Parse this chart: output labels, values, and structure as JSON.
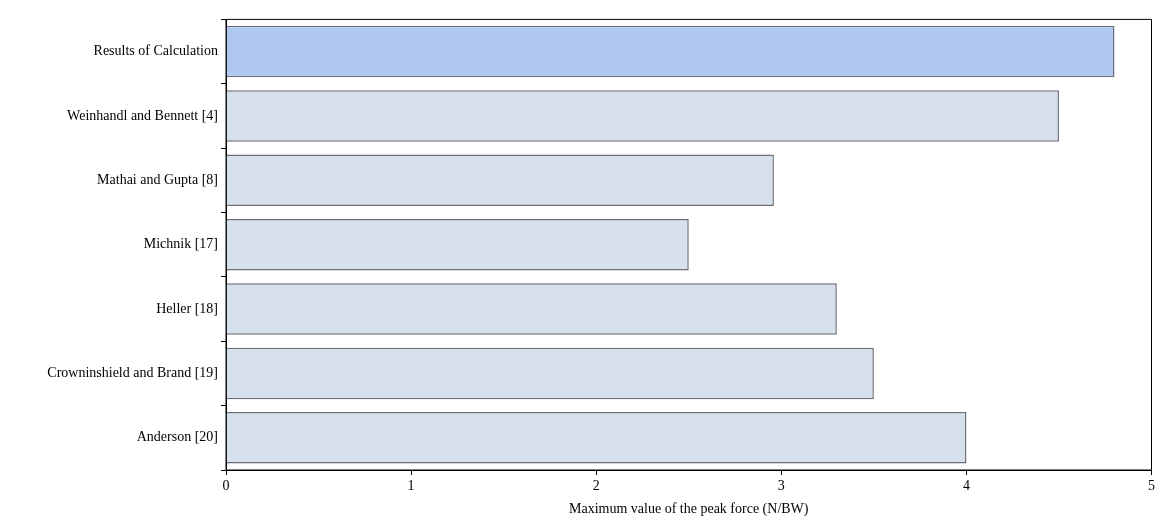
{
  "chart_data": {
    "type": "bar",
    "orientation": "horizontal",
    "xlabel": "Maximum value of the peak force (N/BW)",
    "categories": [
      "Results of Calculation",
      "Weinhandl and Bennett [4]",
      "Mathai and Gupta [8]",
      "Michnik [17]",
      "Heller [18]",
      "Crowninshield and Brand [19]",
      "Anderson [20]"
    ],
    "values": [
      4.8,
      4.5,
      2.96,
      2.5,
      3.3,
      3.5,
      4.0
    ],
    "colors": [
      "#aec8f2",
      "#d7e1ee",
      "#d7e1ee",
      "#d7e1ee",
      "#d7e1ee",
      "#d7e1ee",
      "#d7e1ee"
    ],
    "xlim": [
      0,
      5
    ],
    "xticks": [
      0,
      1,
      2,
      3,
      4,
      5
    ],
    "grid": false,
    "legend": false
  }
}
